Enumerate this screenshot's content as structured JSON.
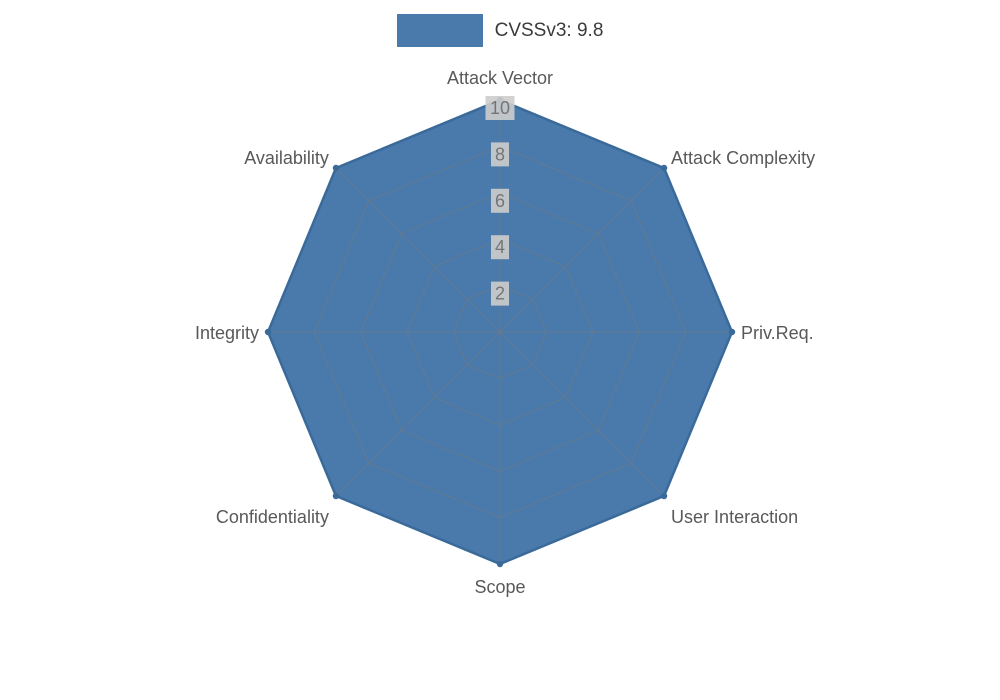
{
  "legend": {
    "swatch_color": "#4a7aab"
  },
  "chart_data": {
    "type": "radar",
    "title": "CVSSv3: 9.8",
    "categories": [
      "Attack Vector",
      "Attack Complexity",
      "Priv.Req.",
      "User Interaction",
      "Scope",
      "Confidentiality",
      "Integrity",
      "Availability"
    ],
    "series": [
      {
        "name": "CVSSv3: 9.8",
        "values": [
          10,
          10,
          10,
          10,
          10,
          10,
          10,
          10
        ]
      }
    ],
    "rlim": [
      0,
      10
    ],
    "ticks": [
      2,
      4,
      6,
      8,
      10
    ],
    "grid": true,
    "legend_position": "top",
    "fill_color": "#4a7aab",
    "line_color": "#3a6a99",
    "grid_color": "#7a7a7a",
    "tick_label_bg": "#cdcdcd",
    "tick_label_color": "#757575",
    "axis_label_color": "#595959"
  }
}
